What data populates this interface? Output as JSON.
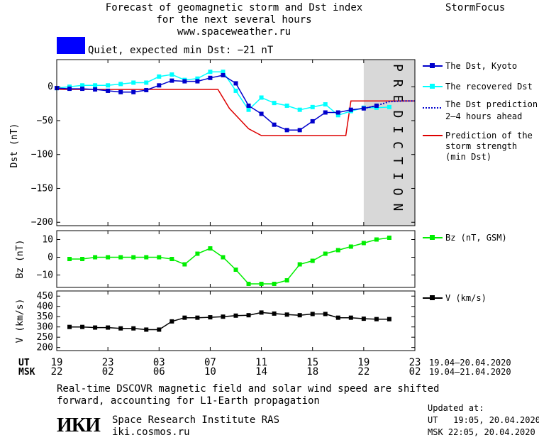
{
  "header": {
    "title_line1": "Forecast of geomagnetic storm and Dst index",
    "title_line2": "for the next several hours",
    "url": "www.spaceweather.ru",
    "brand": "StormFocus"
  },
  "status": {
    "text": "Quiet, expected min Dst: −21 nT",
    "color": "#0000ff"
  },
  "colors": {
    "dst_kyoto": "#0000cc",
    "dst_recovered": "#00ffff",
    "prediction_dots": "#0000cc",
    "storm_strength": "#dd0000",
    "bz": "#00ee00",
    "v": "#000000",
    "prediction_band": "#d8d8d8"
  },
  "prediction_band_text": "PREDICTION",
  "legends": {
    "dst_kyoto": "The Dst, Kyoto",
    "dst_recovered": "The recovered Dst",
    "dst_prediction_1": "The Dst prediction",
    "dst_prediction_2": "2–4 hours ahead",
    "storm_1": "Prediction of the",
    "storm_2": "storm strength",
    "storm_3": "(min Dst)",
    "bz": "Bz (nT, GSM)",
    "v": "V (km/s)"
  },
  "time_axis": {
    "ut_label": "UT",
    "msk_label": "MSK",
    "ut_ticks": [
      "19",
      "23",
      "03",
      "07",
      "11",
      "15",
      "19",
      "23"
    ],
    "msk_ticks": [
      "22",
      "02",
      "06",
      "10",
      "14",
      "18",
      "22",
      "02"
    ],
    "ut_range": "19.04–20.04.2020",
    "msk_range": "19.04–21.04.2020"
  },
  "footer": {
    "note_line1": "Real-time DSCOVR magnetic field and solar wind speed are shifted",
    "note_line2": "forward, accounting for L1-Earth propagation",
    "logo": "ИКИ",
    "institute": "Space Research Institute RAS",
    "site": "iki.cosmos.ru",
    "updated_label": "Updated at:",
    "updated_ut": "UT   19:05, 20.04.2020",
    "updated_msk": "MSK 22:05, 20.04.2020"
  },
  "chart_data": [
    {
      "type": "line",
      "panel": "dst",
      "ylabel": "Dst (nT)",
      "xlabel": "",
      "x_unit": "hours from 19 UT, 19.04.2020",
      "xlim": [
        0,
        28
      ],
      "ylim": [
        -205,
        40
      ],
      "yticks": [
        0,
        -50,
        -100,
        -150,
        -200
      ],
      "ytick_labels": [
        "0",
        "−50",
        "−100",
        "−150",
        "−200"
      ],
      "prediction_band_x": [
        24,
        28
      ],
      "series": [
        {
          "name": "The Dst, Kyoto",
          "x": [
            0,
            1,
            2,
            3,
            4,
            5,
            6,
            7,
            8,
            9,
            10,
            11,
            12,
            13,
            14,
            15,
            16,
            17,
            18,
            19,
            20,
            21,
            22,
            23,
            24,
            25
          ],
          "y": [
            -2,
            -3,
            -3,
            -4,
            -6,
            -8,
            -8,
            -5,
            2,
            9,
            8,
            8,
            13,
            17,
            5,
            -28,
            -40,
            -56,
            -64,
            -64,
            -51,
            -38,
            -38,
            -34,
            -32,
            -28
          ]
        },
        {
          "name": "The recovered Dst",
          "x": [
            0,
            1,
            2,
            3,
            4,
            5,
            6,
            7,
            8,
            9,
            10,
            11,
            12,
            13,
            14,
            15,
            16,
            17,
            18,
            19,
            20,
            21,
            22,
            23,
            24,
            25,
            26
          ],
          "y": [
            -2,
            0,
            2,
            2,
            2,
            4,
            6,
            6,
            15,
            18,
            10,
            12,
            22,
            22,
            -6,
            -34,
            -16,
            -24,
            -28,
            -34,
            -30,
            -26,
            -42,
            -36,
            -31,
            -31,
            -30
          ]
        },
        {
          "name": "The Dst prediction 2–4 hours ahead",
          "x": [
            24,
            25,
            26,
            27,
            28
          ],
          "y": [
            -32,
            -28,
            -22,
            -21,
            -21
          ]
        },
        {
          "name": "Prediction of the storm strength (min Dst)",
          "x": [
            0,
            12.6,
            13.5,
            15,
            16,
            17,
            22.6,
            23,
            28
          ],
          "y": [
            -4,
            -4,
            -32,
            -62,
            -72,
            -72,
            -72,
            -21,
            -21
          ]
        }
      ]
    },
    {
      "type": "line",
      "panel": "bz",
      "ylabel": "Bz (nT)",
      "xlim": [
        0,
        28
      ],
      "ylim": [
        -17,
        15
      ],
      "yticks": [
        10,
        0,
        -10
      ],
      "ytick_labels": [
        "10",
        "0",
        "−10"
      ],
      "series": [
        {
          "name": "Bz (nT, GSM)",
          "x": [
            1,
            2,
            3,
            4,
            5,
            6,
            7,
            8,
            9,
            10,
            11,
            12,
            13,
            14,
            15,
            16,
            17,
            18,
            19,
            20,
            21,
            22,
            23,
            24,
            25,
            26
          ],
          "y": [
            -1,
            -1,
            0,
            0,
            0,
            0,
            0,
            0,
            -1,
            -4,
            2,
            5,
            0,
            -7,
            -15,
            -15,
            -15,
            -13,
            -4,
            -2,
            2,
            4,
            6,
            8,
            10,
            11
          ]
        }
      ]
    },
    {
      "type": "line",
      "panel": "v",
      "ylabel": "V (km/s)",
      "xlim": [
        0,
        28
      ],
      "ylim": [
        185,
        475
      ],
      "yticks": [
        450,
        400,
        350,
        300,
        250,
        200
      ],
      "ytick_labels": [
        "450",
        "400",
        "350",
        "300",
        "250",
        "200"
      ],
      "series": [
        {
          "name": "V (km/s)",
          "x": [
            1,
            2,
            3,
            4,
            5,
            6,
            7,
            8,
            9,
            10,
            11,
            12,
            13,
            14,
            15,
            16,
            17,
            18,
            19,
            20,
            21,
            22,
            23,
            24,
            25,
            26
          ],
          "y": [
            300,
            300,
            297,
            297,
            293,
            293,
            287,
            287,
            327,
            345,
            345,
            347,
            350,
            355,
            357,
            370,
            365,
            360,
            357,
            363,
            363,
            345,
            345,
            340,
            338,
            338
          ]
        }
      ]
    }
  ]
}
